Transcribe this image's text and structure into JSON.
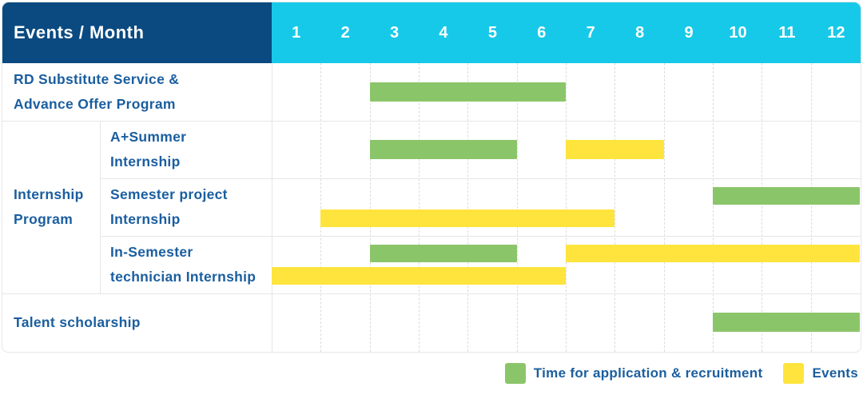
{
  "header": {
    "title": "Events / Month",
    "months": [
      "1",
      "2",
      "3",
      "4",
      "5",
      "6",
      "7",
      "8",
      "9",
      "10",
      "11",
      "12"
    ]
  },
  "colors": {
    "header_bg": "#0A4A80",
    "months_bg": "#17C9E8",
    "application": "#8BC56A",
    "events": "#FFE43D",
    "label_text": "#1A5E9F",
    "grid_border": "#E6E6E6"
  },
  "legend": [
    {
      "key": "application",
      "label": "Time for application & recruitment"
    },
    {
      "key": "events",
      "label": "Events"
    }
  ],
  "group": {
    "label": "Internship\nProgram"
  },
  "chart_data": {
    "type": "bar",
    "subtype": "gantt",
    "title": "Events / Month",
    "x_axis": {
      "label": "Month",
      "ticks": [
        1,
        2,
        3,
        4,
        5,
        6,
        7,
        8,
        9,
        10,
        11,
        12
      ],
      "range": [
        1,
        12
      ]
    },
    "legend_entries": [
      "Time for application & recruitment",
      "Events"
    ],
    "rows": [
      {
        "group": "",
        "label": "RD Substitute Service &\nAdvance Offer Program",
        "tracks": [
          [
            {
              "series": "application",
              "start_month": 3,
              "end_month": 6
            }
          ]
        ]
      },
      {
        "group": "Internship Program",
        "label": "A+Summer\nInternship",
        "tracks": [
          [
            {
              "series": "application",
              "start_month": 3,
              "end_month": 5
            },
            {
              "series": "events",
              "start_month": 7,
              "end_month": 8
            }
          ]
        ]
      },
      {
        "group": "Internship Program",
        "label": "Semester project\nInternship",
        "tracks": [
          [
            {
              "series": "application",
              "start_month": 10,
              "end_month": 12
            }
          ],
          [
            {
              "series": "events",
              "start_month": 2,
              "end_month": 7
            }
          ]
        ]
      },
      {
        "group": "Internship Program",
        "label": "In-Semester\ntechnician Internship",
        "tracks": [
          [
            {
              "series": "application",
              "start_month": 3,
              "end_month": 5
            },
            {
              "series": "events",
              "start_month": 7,
              "end_month": 12
            }
          ],
          [
            {
              "series": "events",
              "start_month": 1,
              "end_month": 6
            }
          ]
        ]
      },
      {
        "group": "",
        "label": "Talent scholarship",
        "tracks": [
          [
            {
              "series": "application",
              "start_month": 10,
              "end_month": 12
            }
          ]
        ]
      }
    ]
  }
}
